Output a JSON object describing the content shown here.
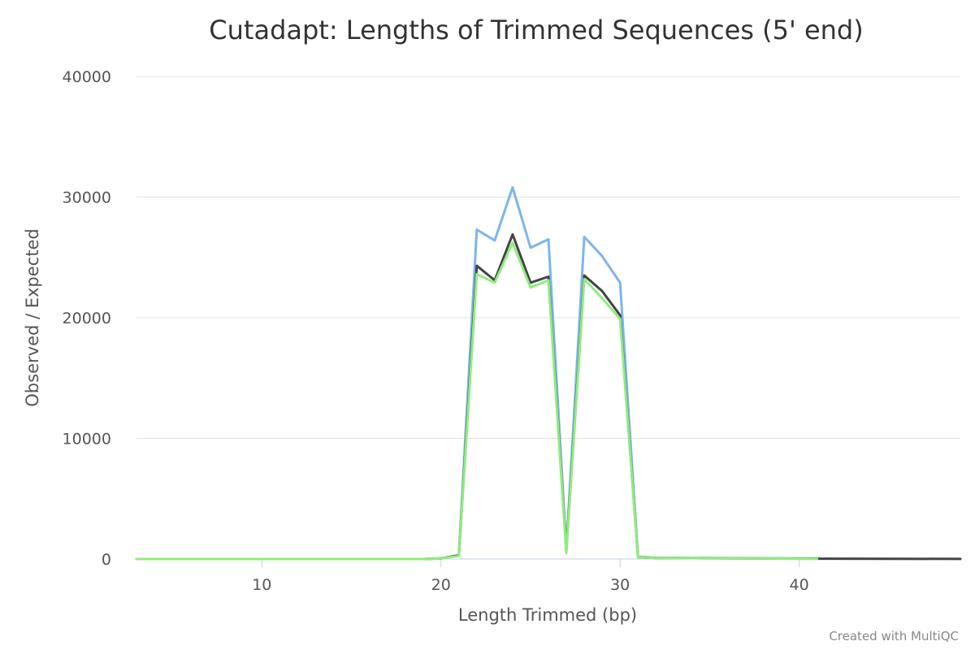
{
  "chart_data": {
    "type": "line",
    "title": "Cutadapt: Lengths of Trimmed Sequences (5' end)",
    "xlabel": "Length Trimmed (bp)",
    "ylabel": "Observed / Expected",
    "xlim": [
      3,
      49
    ],
    "ylim": [
      0,
      40000
    ],
    "xticks": [
      10,
      20,
      30,
      40
    ],
    "yticks": [
      0,
      10000,
      20000,
      30000,
      40000
    ],
    "grid": true,
    "legend": "none",
    "series": [
      {
        "color": "#7cb5ec",
        "points": [
          [
            3,
            0
          ],
          [
            10,
            0
          ],
          [
            15,
            0
          ],
          [
            19,
            0
          ],
          [
            20,
            50
          ],
          [
            21,
            300
          ],
          [
            22,
            27300
          ],
          [
            23,
            26400
          ],
          [
            24,
            30800
          ],
          [
            25,
            25800
          ],
          [
            26,
            26500
          ],
          [
            27,
            800
          ],
          [
            28,
            26700
          ],
          [
            29,
            25100
          ],
          [
            30,
            22900
          ],
          [
            31,
            200
          ],
          [
            32,
            100
          ],
          [
            35,
            80
          ],
          [
            38,
            60
          ],
          [
            41,
            50
          ]
        ]
      },
      {
        "color": "#434348",
        "points": [
          [
            3,
            0
          ],
          [
            10,
            0
          ],
          [
            15,
            0
          ],
          [
            19,
            0
          ],
          [
            20,
            50
          ],
          [
            21,
            300
          ],
          [
            22,
            24300
          ],
          [
            23,
            23100
          ],
          [
            24,
            26900
          ],
          [
            25,
            22900
          ],
          [
            26,
            23400
          ],
          [
            27,
            700
          ],
          [
            28,
            23500
          ],
          [
            29,
            22200
          ],
          [
            30,
            20200
          ],
          [
            31,
            150
          ],
          [
            32,
            80
          ],
          [
            35,
            60
          ],
          [
            38,
            40
          ],
          [
            41,
            30
          ],
          [
            45,
            20
          ],
          [
            49,
            10
          ]
        ]
      },
      {
        "color": "#90ed7d",
        "points": [
          [
            3,
            0
          ],
          [
            10,
            0
          ],
          [
            15,
            0
          ],
          [
            19,
            0
          ],
          [
            20,
            50
          ],
          [
            21,
            250
          ],
          [
            22,
            23600
          ],
          [
            23,
            22900
          ],
          [
            24,
            26200
          ],
          [
            25,
            22500
          ],
          [
            26,
            23100
          ],
          [
            27,
            500
          ],
          [
            28,
            23200
          ],
          [
            29,
            21600
          ],
          [
            30,
            19900
          ],
          [
            31,
            150
          ],
          [
            32,
            80
          ],
          [
            35,
            60
          ],
          [
            38,
            40
          ],
          [
            41,
            20
          ]
        ]
      }
    ]
  },
  "credit": "Created with MultiQC"
}
